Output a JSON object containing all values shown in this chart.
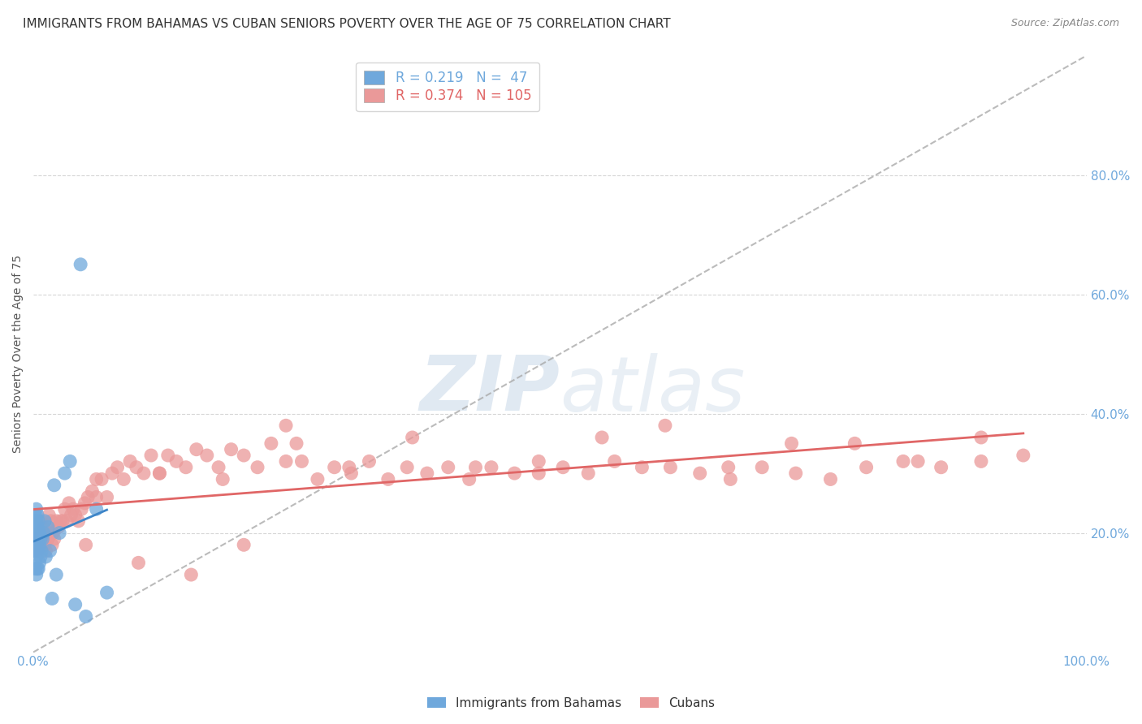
{
  "title": "IMMIGRANTS FROM BAHAMAS VS CUBAN SENIORS POVERTY OVER THE AGE OF 75 CORRELATION CHART",
  "source": "Source: ZipAtlas.com",
  "ylabel": "Seniors Poverty Over the Age of 75",
  "legend_R_bahamas": "0.219",
  "legend_N_bahamas": "47",
  "legend_R_cubans": "0.374",
  "legend_N_cubans": "105",
  "bahamas_color": "#6fa8dc",
  "cubans_color": "#ea9999",
  "trend_bahamas_color": "#3d85c8",
  "trend_cubans_color": "#e06666",
  "diagonal_color": "#aaaaaa",
  "watermark_zip": "ZIP",
  "watermark_atlas": "atlas",
  "background_color": "#ffffff",
  "grid_color": "#cccccc",
  "title_fontsize": 11,
  "tick_color": "#6fa8dc",
  "tick_fontsize": 11,
  "legend_fontsize": 12,
  "bahamas_x": [
    0.001,
    0.001,
    0.001,
    0.001,
    0.002,
    0.002,
    0.002,
    0.002,
    0.002,
    0.003,
    0.003,
    0.003,
    0.003,
    0.003,
    0.003,
    0.004,
    0.004,
    0.004,
    0.004,
    0.004,
    0.005,
    0.005,
    0.005,
    0.005,
    0.006,
    0.006,
    0.006,
    0.007,
    0.007,
    0.008,
    0.009,
    0.01,
    0.011,
    0.012,
    0.014,
    0.016,
    0.018,
    0.02,
    0.022,
    0.025,
    0.03,
    0.035,
    0.04,
    0.045,
    0.05,
    0.06,
    0.07
  ],
  "bahamas_y": [
    0.17,
    0.19,
    0.2,
    0.22,
    0.14,
    0.17,
    0.19,
    0.21,
    0.23,
    0.13,
    0.16,
    0.18,
    0.2,
    0.22,
    0.24,
    0.14,
    0.17,
    0.19,
    0.21,
    0.23,
    0.14,
    0.17,
    0.2,
    0.22,
    0.15,
    0.18,
    0.2,
    0.16,
    0.19,
    0.17,
    0.19,
    0.2,
    0.22,
    0.16,
    0.21,
    0.17,
    0.09,
    0.28,
    0.13,
    0.2,
    0.3,
    0.32,
    0.08,
    0.65,
    0.06,
    0.24,
    0.1
  ],
  "cubans_x": [
    0.001,
    0.002,
    0.003,
    0.004,
    0.005,
    0.006,
    0.007,
    0.008,
    0.009,
    0.01,
    0.011,
    0.012,
    0.013,
    0.014,
    0.015,
    0.016,
    0.017,
    0.018,
    0.019,
    0.02,
    0.022,
    0.024,
    0.026,
    0.028,
    0.03,
    0.032,
    0.034,
    0.036,
    0.038,
    0.04,
    0.043,
    0.046,
    0.049,
    0.052,
    0.056,
    0.06,
    0.065,
    0.07,
    0.075,
    0.08,
    0.086,
    0.092,
    0.098,
    0.105,
    0.112,
    0.12,
    0.128,
    0.136,
    0.145,
    0.155,
    0.165,
    0.176,
    0.188,
    0.2,
    0.213,
    0.226,
    0.24,
    0.255,
    0.27,
    0.286,
    0.302,
    0.319,
    0.337,
    0.355,
    0.374,
    0.394,
    0.414,
    0.435,
    0.457,
    0.48,
    0.503,
    0.527,
    0.552,
    0.578,
    0.605,
    0.633,
    0.662,
    0.692,
    0.724,
    0.757,
    0.791,
    0.826,
    0.862,
    0.9,
    0.94,
    0.06,
    0.12,
    0.18,
    0.24,
    0.3,
    0.36,
    0.42,
    0.48,
    0.54,
    0.6,
    0.66,
    0.72,
    0.78,
    0.84,
    0.9,
    0.05,
    0.1,
    0.15,
    0.2,
    0.25
  ],
  "cubans_y": [
    0.17,
    0.19,
    0.18,
    0.17,
    0.2,
    0.18,
    0.22,
    0.19,
    0.18,
    0.21,
    0.18,
    0.17,
    0.2,
    0.19,
    0.23,
    0.2,
    0.22,
    0.18,
    0.2,
    0.19,
    0.22,
    0.21,
    0.22,
    0.22,
    0.24,
    0.22,
    0.25,
    0.23,
    0.24,
    0.23,
    0.22,
    0.24,
    0.25,
    0.26,
    0.27,
    0.26,
    0.29,
    0.26,
    0.3,
    0.31,
    0.29,
    0.32,
    0.31,
    0.3,
    0.33,
    0.3,
    0.33,
    0.32,
    0.31,
    0.34,
    0.33,
    0.31,
    0.34,
    0.33,
    0.31,
    0.35,
    0.32,
    0.32,
    0.29,
    0.31,
    0.3,
    0.32,
    0.29,
    0.31,
    0.3,
    0.31,
    0.29,
    0.31,
    0.3,
    0.32,
    0.31,
    0.3,
    0.32,
    0.31,
    0.31,
    0.3,
    0.29,
    0.31,
    0.3,
    0.29,
    0.31,
    0.32,
    0.31,
    0.32,
    0.33,
    0.29,
    0.3,
    0.29,
    0.38,
    0.31,
    0.36,
    0.31,
    0.3,
    0.36,
    0.38,
    0.31,
    0.35,
    0.35,
    0.32,
    0.36,
    0.18,
    0.15,
    0.13,
    0.18,
    0.35
  ],
  "xlim": [
    0.0,
    1.0
  ],
  "ylim": [
    0.0,
    1.0
  ],
  "ytick_positions": [
    0.2,
    0.4,
    0.6,
    0.8
  ],
  "ytick_labels": [
    "20.0%",
    "40.0%",
    "60.0%",
    "80.0%"
  ],
  "xtick_positions": [
    0.0,
    1.0
  ],
  "xtick_labels": [
    "0.0%",
    "100.0%"
  ]
}
